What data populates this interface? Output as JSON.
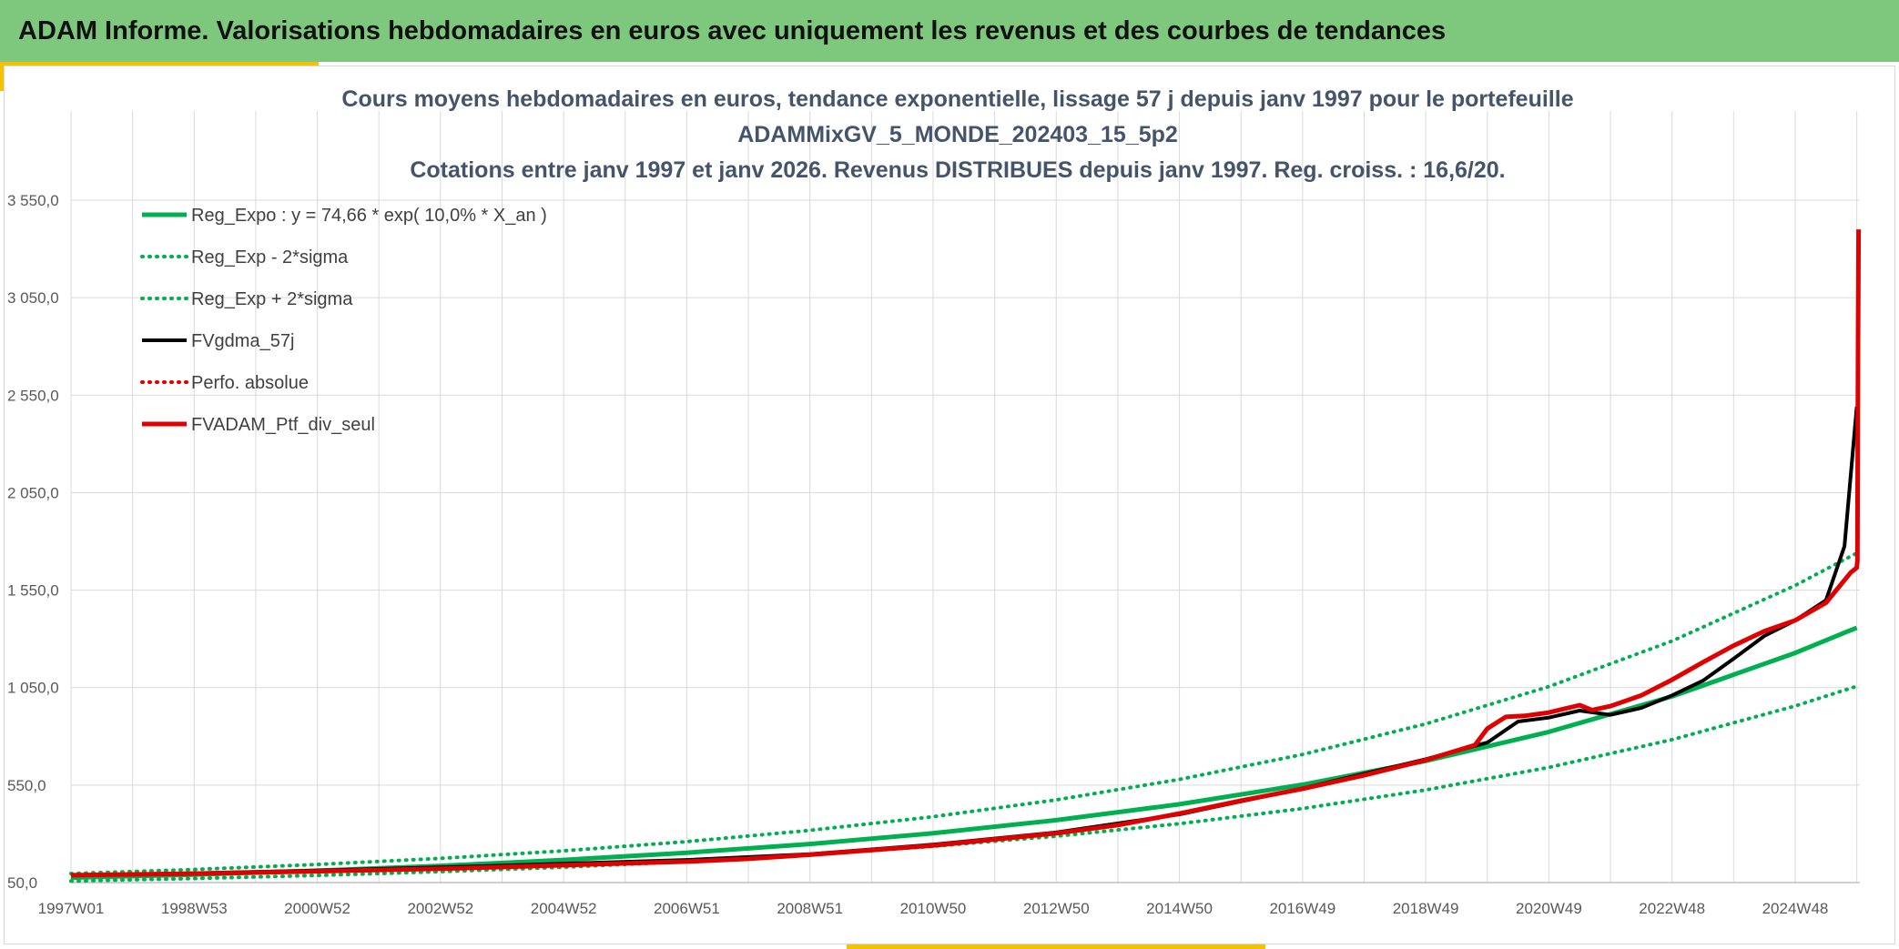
{
  "header": {
    "title": "ADAM Informe. Valorisations hebdomadaires en euros avec uniquement les revenus et des courbes de tendances"
  },
  "colors": {
    "banner": "#7ec87e",
    "accent": "#f2c200",
    "green": "#00b050",
    "red": "#e00000",
    "black": "#000000",
    "grid": "#d9d9d9"
  },
  "chart_data": {
    "type": "line",
    "title_lines": [
      "Cours moyens hebdomadaires en euros, tendance exponentielle, lissage 57 j depuis janv 1997 pour le portefeuille",
      "ADAMMixGV_5_MONDE_202403_15_5p2",
      "Cotations entre janv 1997 et janv 2026. Revenus DISTRIBUES depuis janv 1997. Reg. croiss. : 16,6/20."
    ],
    "xlabel": "",
    "ylabel": "",
    "x_ticks": [
      "1997W01",
      "1998W53",
      "2000W52",
      "2002W52",
      "2004W52",
      "2006W51",
      "2008W51",
      "2010W50",
      "2012W50",
      "2014W50",
      "2016W49",
      "2018W49",
      "2020W49",
      "2022W48",
      "2024W48"
    ],
    "x_tick_years": [
      1997.0,
      1999.0,
      2001.0,
      2003.0,
      2005.0,
      2007.0,
      2009.0,
      2011.0,
      2013.0,
      2015.0,
      2017.0,
      2019.0,
      2021.0,
      2023.0,
      2025.0
    ],
    "xlim": [
      1997.0,
      2026.05
    ],
    "y_ticks": [
      "50,0",
      "550,0",
      "1 050,0",
      "1 550,0",
      "2 050,0",
      "2 550,0",
      "3 050,0",
      "3 550,0"
    ],
    "y_tick_values": [
      50,
      550,
      1050,
      1550,
      2050,
      2550,
      3050,
      3550
    ],
    "ylim": [
      50,
      3550
    ],
    "grid": true,
    "legend_position": "top-left",
    "series": [
      {
        "name": "Reg_Expo : y = 74,66 * exp( 10,0% *  X_an )",
        "color": "#00b050",
        "style": "solid",
        "width": 5,
        "x": [
          1997,
          1999,
          2001,
          2003,
          2005,
          2007,
          2009,
          2011,
          2013,
          2015,
          2017,
          2019,
          2021,
          2023,
          2025,
          2026
        ],
        "y": [
          75,
          91,
          111,
          136,
          166,
          203,
          248,
          303,
          370,
          452,
          552,
          674,
          823,
          1005,
          1228,
          1357
        ]
      },
      {
        "name": "Reg_Exp - 2*sigma",
        "color": "#00b050",
        "style": "dotted",
        "width": 4,
        "x": [
          1997,
          1999,
          2001,
          2003,
          2005,
          2007,
          2009,
          2011,
          2013,
          2015,
          2017,
          2019,
          2021,
          2023,
          2025,
          2026
        ],
        "y": [
          58,
          71,
          87,
          106,
          129,
          158,
          193,
          236,
          288,
          352,
          430,
          525,
          641,
          783,
          956,
          1057
        ]
      },
      {
        "name": "Reg_Exp + 2*sigma",
        "color": "#00b050",
        "style": "dotted",
        "width": 4,
        "x": [
          1997,
          1999,
          2001,
          2003,
          2005,
          2007,
          2009,
          2011,
          2013,
          2015,
          2017,
          2019,
          2021,
          2023,
          2025,
          2026
        ],
        "y": [
          96,
          117,
          143,
          174,
          213,
          260,
          318,
          388,
          474,
          579,
          707,
          864,
          1055,
          1289,
          1574,
          1740
        ]
      },
      {
        "name": "FVgdma_57j",
        "color": "#000000",
        "style": "solid",
        "width": 4,
        "x": [
          1997,
          1999,
          2001,
          2003,
          2005,
          2007,
          2009,
          2011,
          2013,
          2015,
          2017,
          2019,
          2020,
          2020.5,
          2021,
          2021.5,
          2022,
          2022.5,
          2023,
          2023.5,
          2024,
          2024.5,
          2025,
          2025.5,
          2025.8,
          2026
        ],
        "y": [
          88,
          98,
          112,
          128,
          147,
          166,
          196,
          245,
          307,
          400,
          533,
          683,
          768,
          876,
          896,
          932,
          910,
          946,
          1010,
          1085,
          1198,
          1315,
          1395,
          1498,
          1775,
          2490
        ]
      },
      {
        "name": "Perfo. absolue",
        "color": "#e00000",
        "style": "dotted",
        "width": 4,
        "x": [],
        "y": []
      },
      {
        "name": "FVADAM_Ptf_div_seul",
        "color": "#e00000",
        "style": "solid",
        "width": 5,
        "x": [
          1997,
          1999,
          2001,
          2003,
          2005,
          2007,
          2008,
          2009,
          2011,
          2013,
          2014,
          2015,
          2016,
          2017,
          2018,
          2019,
          2019.8,
          2020,
          2020.3,
          2020.6,
          2021,
          2021.5,
          2021.7,
          2022,
          2022.5,
          2023,
          2023.5,
          2024,
          2024.5,
          2025,
          2025.5,
          2025.9,
          2026,
          2026.01,
          2026.02,
          2026.03
        ],
        "y": [
          88,
          96,
          108,
          121,
          139,
          158,
          172,
          193,
          240,
          303,
          345,
          404,
          470,
          531,
          600,
          678,
          755,
          840,
          900,
          905,
          922,
          960,
          935,
          955,
          1010,
          1090,
          1180,
          1265,
          1340,
          1395,
          1485,
          1640,
          1665,
          1700,
          2800,
          3400
        ]
      }
    ]
  }
}
